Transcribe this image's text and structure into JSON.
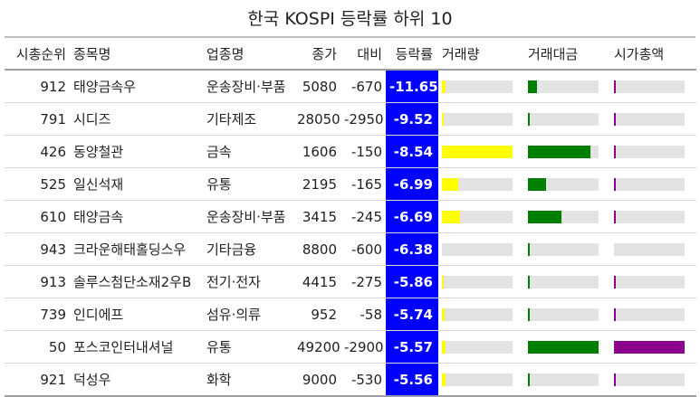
{
  "title": "한국 KOSPI 등락률 하위 10",
  "colors": {
    "volume": "#ffff00",
    "value": "#008000",
    "mktcap": "#8b008b",
    "change_bg": "#0000ff"
  },
  "columns": [
    "시총순위",
    "종목명",
    "업종명",
    "종가",
    "대비",
    "등락률",
    "거래량",
    "거래대금",
    "시가총액"
  ],
  "chart_data": {
    "type": "table",
    "title": "한국 KOSPI 등락률 하위 10",
    "columns": [
      "시총순위",
      "종목명",
      "업종명",
      "종가",
      "대비",
      "등락률",
      "거래량",
      "거래대금",
      "시가총액"
    ],
    "rows": [
      {
        "rank": "912",
        "name": "태양금속우",
        "sector": "운송장비·부품",
        "close": "5080",
        "diff": "-670",
        "chg": "-11.65",
        "vol": 0.05,
        "val": 0.13,
        "cap": 0.02
      },
      {
        "rank": "791",
        "name": "시디즈",
        "sector": "기타제조",
        "close": "28050",
        "diff": "-2950",
        "chg": "-9.52",
        "vol": 0.02,
        "val": 0.02,
        "cap": 0.02
      },
      {
        "rank": "426",
        "name": "동양철관",
        "sector": "금속",
        "close": "1606",
        "diff": "-150",
        "chg": "-8.54",
        "vol": 1.0,
        "val": 0.89,
        "cap": 0.03
      },
      {
        "rank": "525",
        "name": "일신석재",
        "sector": "유통",
        "close": "2195",
        "diff": "-165",
        "chg": "-6.99",
        "vol": 0.23,
        "val": 0.26,
        "cap": 0.02
      },
      {
        "rank": "610",
        "name": "태양금속",
        "sector": "운송장비·부품",
        "close": "3415",
        "diff": "-245",
        "chg": "-6.69",
        "vol": 0.25,
        "val": 0.47,
        "cap": 0.02
      },
      {
        "rank": "943",
        "name": "크라운해태홀딩스우",
        "sector": "기타금융",
        "close": "8800",
        "diff": "-600",
        "chg": "-6.38",
        "vol": 0.0,
        "val": 0.02,
        "cap": 0.0
      },
      {
        "rank": "913",
        "name": "솔루스첨단소재2우B",
        "sector": "전기·전자",
        "close": "4415",
        "diff": "-275",
        "chg": "-5.86",
        "vol": 0.03,
        "val": 0.02,
        "cap": 0.02
      },
      {
        "rank": "739",
        "name": "인디에프",
        "sector": "섬유·의류",
        "close": "952",
        "diff": "-58",
        "chg": "-5.74",
        "vol": 0.04,
        "val": 0.02,
        "cap": 0.02
      },
      {
        "rank": "50",
        "name": "포스코인터내셔널",
        "sector": "유통",
        "close": "49200",
        "diff": "-2900",
        "chg": "-5.57",
        "vol": 0.05,
        "val": 1.0,
        "cap": 1.0
      },
      {
        "rank": "921",
        "name": "덕성우",
        "sector": "화학",
        "close": "9000",
        "diff": "-530",
        "chg": "-5.56",
        "vol": 0.05,
        "val": 0.02,
        "cap": 0.02
      }
    ]
  }
}
